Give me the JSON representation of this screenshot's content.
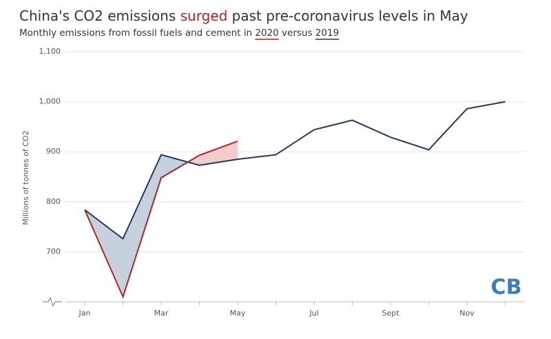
{
  "chart_data": {
    "type": "line",
    "title_parts": [
      "China's CO2 emissions ",
      "surged",
      " past pre-coronavirus levels in May"
    ],
    "subtitle_parts": [
      "Monthly emissions from fossil fuels and cement in ",
      " versus "
    ],
    "y_label": "Millions of tonnes of CO2",
    "logo": "CB",
    "categories": [
      "Jan",
      null,
      "Mar",
      null,
      "May",
      null,
      "Jul",
      null,
      "Sept",
      null,
      "Nov",
      null
    ],
    "series": [
      {
        "name": "2019",
        "color": "#1f3a5a",
        "values": [
          784,
          726,
          894,
          873,
          885,
          894,
          944,
          963,
          929,
          904,
          986,
          1000
        ]
      },
      {
        "name": "2020",
        "color": "#b22222",
        "values": [
          784,
          610,
          848,
          893,
          921,
          null,
          null,
          null,
          null,
          null,
          null,
          null
        ]
      }
    ],
    "fill_colors": {
      "above": "#c5d2dd",
      "below": "#f5cccc"
    },
    "ylim": [
      600,
      1100
    ],
    "yticks": [
      700,
      800,
      900,
      {
        "value": 1000,
        "label": "1,000"
      },
      {
        "value": 1100,
        "label": "1,100"
      }
    ],
    "grid": true
  }
}
